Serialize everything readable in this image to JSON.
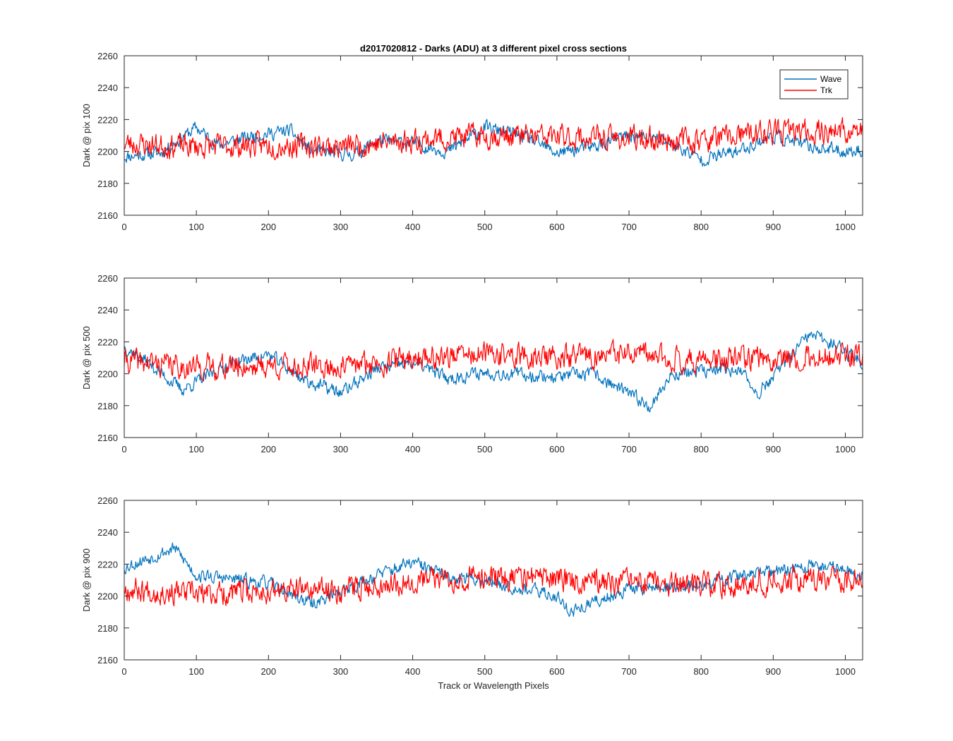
{
  "chart_data": {
    "type": "line",
    "title": "d2017020812 - Darks (ADU) at 3 different pixel cross sections",
    "xlabel": "Track or Wavelength Pixels",
    "xlim": [
      0,
      1024
    ],
    "x_ticks": [
      "0",
      "100",
      "200",
      "300",
      "400",
      "500",
      "600",
      "700",
      "800",
      "900",
      "1000"
    ],
    "x_tick_values": [
      0,
      100,
      200,
      300,
      400,
      500,
      600,
      700,
      800,
      900,
      1000
    ],
    "legend": {
      "position": "top-right",
      "entries": [
        {
          "name": "Wave",
          "color": "#0072BD"
        },
        {
          "name": "Trk",
          "color": "#FF0000"
        }
      ]
    },
    "subplots": [
      {
        "ylabel": "Dark @ pix 100",
        "ylim": [
          2160,
          2260
        ],
        "y_ticks": [
          "2160",
          "2180",
          "2200",
          "2220",
          "2240",
          "2260"
        ],
        "y_tick_values": [
          2160,
          2180,
          2200,
          2220,
          2240,
          2260
        ],
        "series": [
          {
            "name": "Wave",
            "color": "#0072BD",
            "noise": 5,
            "seed": 11,
            "trend": [
              [
                0,
                2197
              ],
              [
                50,
                2199
              ],
              [
                100,
                2215
              ],
              [
                130,
                2204
              ],
              [
                180,
                2210
              ],
              [
                230,
                2213
              ],
              [
                260,
                2200
              ],
              [
                320,
                2198
              ],
              [
                350,
                2207
              ],
              [
                400,
                2205
              ],
              [
                450,
                2200
              ],
              [
                500,
                2215
              ],
              [
                550,
                2210
              ],
              [
                600,
                2199
              ],
              [
                650,
                2203
              ],
              [
                700,
                2210
              ],
              [
                750,
                2207
              ],
              [
                800,
                2195
              ],
              [
                850,
                2200
              ],
              [
                900,
                2210
              ],
              [
                950,
                2203
              ],
              [
                1000,
                2200
              ],
              [
                1024,
                2201
              ]
            ]
          },
          {
            "name": "Trk",
            "color": "#FF0000",
            "noise": 9,
            "seed": 23,
            "trend": [
              [
                0,
                2205
              ],
              [
                100,
                2203
              ],
              [
                200,
                2204
              ],
              [
                300,
                2203
              ],
              [
                400,
                2207
              ],
              [
                500,
                2210
              ],
              [
                600,
                2209
              ],
              [
                700,
                2208
              ],
              [
                800,
                2207
              ],
              [
                900,
                2212
              ],
              [
                1000,
                2213
              ],
              [
                1024,
                2212
              ]
            ]
          }
        ]
      },
      {
        "ylabel": "Dark @ pix 500",
        "ylim": [
          2160,
          2260
        ],
        "y_ticks": [
          "2160",
          "2180",
          "2200",
          "2220",
          "2240",
          "2260"
        ],
        "y_tick_values": [
          2160,
          2180,
          2200,
          2220,
          2240,
          2260
        ],
        "series": [
          {
            "name": "Wave",
            "color": "#0072BD",
            "noise": 5,
            "seed": 37,
            "trend": [
              [
                0,
                2217
              ],
              [
                30,
                2208
              ],
              [
                80,
                2190
              ],
              [
                150,
                2207
              ],
              [
                200,
                2212
              ],
              [
                250,
                2196
              ],
              [
                300,
                2188
              ],
              [
                350,
                2203
              ],
              [
                400,
                2207
              ],
              [
                450,
                2197
              ],
              [
                500,
                2201
              ],
              [
                600,
                2198
              ],
              [
                650,
                2200
              ],
              [
                700,
                2187
              ],
              [
                730,
                2180
              ],
              [
                760,
                2200
              ],
              [
                850,
                2203
              ],
              [
                880,
                2188
              ],
              [
                950,
                2224
              ],
              [
                980,
                2220
              ],
              [
                1024,
                2207
              ]
            ]
          },
          {
            "name": "Trk",
            "color": "#FF0000",
            "noise": 9,
            "seed": 41,
            "trend": [
              [
                0,
                2208
              ],
              [
                100,
                2204
              ],
              [
                200,
                2205
              ],
              [
                300,
                2204
              ],
              [
                400,
                2210
              ],
              [
                500,
                2212
              ],
              [
                600,
                2210
              ],
              [
                700,
                2212
              ],
              [
                800,
                2208
              ],
              [
                900,
                2210
              ],
              [
                1000,
                2211
              ],
              [
                1024,
                2210
              ]
            ]
          }
        ]
      },
      {
        "ylabel": "Dark @ pix 900",
        "ylim": [
          2160,
          2260
        ],
        "y_ticks": [
          "2160",
          "2180",
          "2200",
          "2220",
          "2240",
          "2260"
        ],
        "y_tick_values": [
          2160,
          2180,
          2200,
          2220,
          2240,
          2260
        ],
        "series": [
          {
            "name": "Wave",
            "color": "#0072BD",
            "noise": 5,
            "seed": 53,
            "trend": [
              [
                0,
                2218
              ],
              [
                40,
                2225
              ],
              [
                70,
                2230
              ],
              [
                100,
                2213
              ],
              [
                200,
                2208
              ],
              [
                260,
                2195
              ],
              [
                300,
                2203
              ],
              [
                350,
                2213
              ],
              [
                400,
                2221
              ],
              [
                450,
                2212
              ],
              [
                500,
                2210
              ],
              [
                600,
                2200
              ],
              [
                620,
                2190
              ],
              [
                700,
                2205
              ],
              [
                800,
                2206
              ],
              [
                850,
                2213
              ],
              [
                900,
                2215
              ],
              [
                950,
                2219
              ],
              [
                1000,
                2218
              ],
              [
                1024,
                2213
              ]
            ]
          },
          {
            "name": "Trk",
            "color": "#FF0000",
            "noise": 9,
            "seed": 67,
            "trend": [
              [
                0,
                2205
              ],
              [
                100,
                2201
              ],
              [
                200,
                2203
              ],
              [
                300,
                2204
              ],
              [
                400,
                2210
              ],
              [
                500,
                2212
              ],
              [
                600,
                2211
              ],
              [
                700,
                2208
              ],
              [
                800,
                2206
              ],
              [
                900,
                2210
              ],
              [
                1000,
                2211
              ],
              [
                1024,
                2210
              ]
            ]
          }
        ]
      }
    ]
  }
}
